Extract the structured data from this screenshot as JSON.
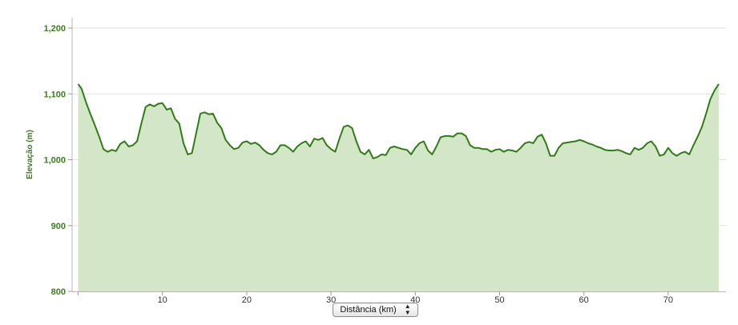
{
  "chart_data": {
    "type": "area",
    "title": "",
    "ylabel": "Elevação (m)",
    "xlabel": "Distância (km)",
    "ylim": [
      800,
      1200
    ],
    "xlim": [
      0,
      76
    ],
    "yticks": [
      800,
      900,
      1000,
      1100,
      1200
    ],
    "ytick_labels": [
      "800",
      "900",
      "1,000",
      "1,100",
      "1,200"
    ],
    "xticks": [
      10,
      20,
      30,
      40,
      50,
      60,
      70
    ],
    "xtick_labels": [
      "10",
      "20",
      "30",
      "40",
      "50",
      "60",
      "70"
    ],
    "grid": true,
    "line_color": "#2e7d12",
    "fill_color": "#d4e6c8",
    "series": [
      {
        "x": [
          0,
          0.4,
          1,
          1.5,
          2,
          2.5,
          3,
          3.5,
          4,
          4.5,
          5,
          5.5,
          6,
          6.5,
          7,
          7.5,
          8,
          8.5,
          9,
          9.5,
          10,
          10.5,
          11,
          11.5,
          12,
          12.5,
          13,
          13.5,
          14,
          14.5,
          15,
          15.5,
          16,
          16.5,
          17,
          17.5,
          18,
          18.5,
          19,
          19.5,
          20,
          20.5,
          21,
          21.5,
          22,
          22.5,
          23,
          23.5,
          24,
          24.5,
          25,
          25.5,
          26,
          26.5,
          27,
          27.5,
          28,
          28.5,
          29,
          29.5,
          30,
          30.5,
          31,
          31.5,
          32,
          32.5,
          33,
          33.5,
          34,
          34.5,
          35,
          35.5,
          36,
          36.5,
          37,
          37.5,
          38,
          38.5,
          39,
          39.5,
          40,
          40.5,
          41,
          41.5,
          42,
          42.5,
          43,
          43.5,
          44,
          44.5,
          45,
          45.5,
          46,
          46.5,
          47,
          47.5,
          48,
          48.5,
          49,
          49.5,
          50,
          50.5,
          51,
          51.5,
          52,
          52.5,
          53,
          53.5,
          54,
          54.5,
          55,
          55.5,
          56,
          56.5,
          57,
          57.5,
          58,
          58.5,
          59,
          59.5,
          60,
          60.5,
          61,
          61.5,
          62,
          62.5,
          63,
          63.5,
          64,
          64.5,
          65,
          65.5,
          66,
          66.5,
          67,
          67.5,
          68,
          68.5,
          69,
          69.5,
          70,
          70.5,
          71,
          71.5,
          72,
          72.5,
          73,
          73.5,
          74,
          74.5,
          75,
          75.5,
          76
        ],
        "values": [
          1115,
          1108,
          1085,
          1068,
          1052,
          1035,
          1016,
          1012,
          1015,
          1013,
          1024,
          1028,
          1020,
          1022,
          1028,
          1055,
          1080,
          1084,
          1081,
          1085,
          1086,
          1076,
          1078,
          1062,
          1055,
          1025,
          1008,
          1010,
          1040,
          1070,
          1072,
          1069,
          1070,
          1056,
          1048,
          1030,
          1022,
          1016,
          1018,
          1026,
          1028,
          1024,
          1026,
          1022,
          1015,
          1010,
          1008,
          1012,
          1022,
          1022,
          1018,
          1012,
          1020,
          1025,
          1028,
          1020,
          1032,
          1030,
          1033,
          1022,
          1016,
          1012,
          1032,
          1050,
          1052,
          1048,
          1028,
          1012,
          1008,
          1015,
          1002,
          1004,
          1008,
          1007,
          1018,
          1020,
          1018,
          1016,
          1015,
          1008,
          1018,
          1025,
          1028,
          1014,
          1008,
          1020,
          1034,
          1036,
          1036,
          1035,
          1040,
          1040,
          1036,
          1022,
          1018,
          1018,
          1016,
          1016,
          1012,
          1015,
          1016,
          1012,
          1015,
          1014,
          1012,
          1018,
          1025,
          1027,
          1025,
          1035,
          1038,
          1025,
          1006,
          1006,
          1018,
          1025,
          1026,
          1027,
          1028,
          1030,
          1028,
          1025,
          1023,
          1020,
          1018,
          1015,
          1014,
          1014,
          1015,
          1013,
          1010,
          1008,
          1018,
          1015,
          1018,
          1025,
          1028,
          1020,
          1006,
          1008,
          1018,
          1010,
          1006,
          1010,
          1012,
          1008,
          1022,
          1035,
          1050,
          1070,
          1092,
          1105,
          1115
        ]
      }
    ]
  },
  "x_axis_select": {
    "label": "Distância (km)",
    "arrow": "⬍"
  }
}
